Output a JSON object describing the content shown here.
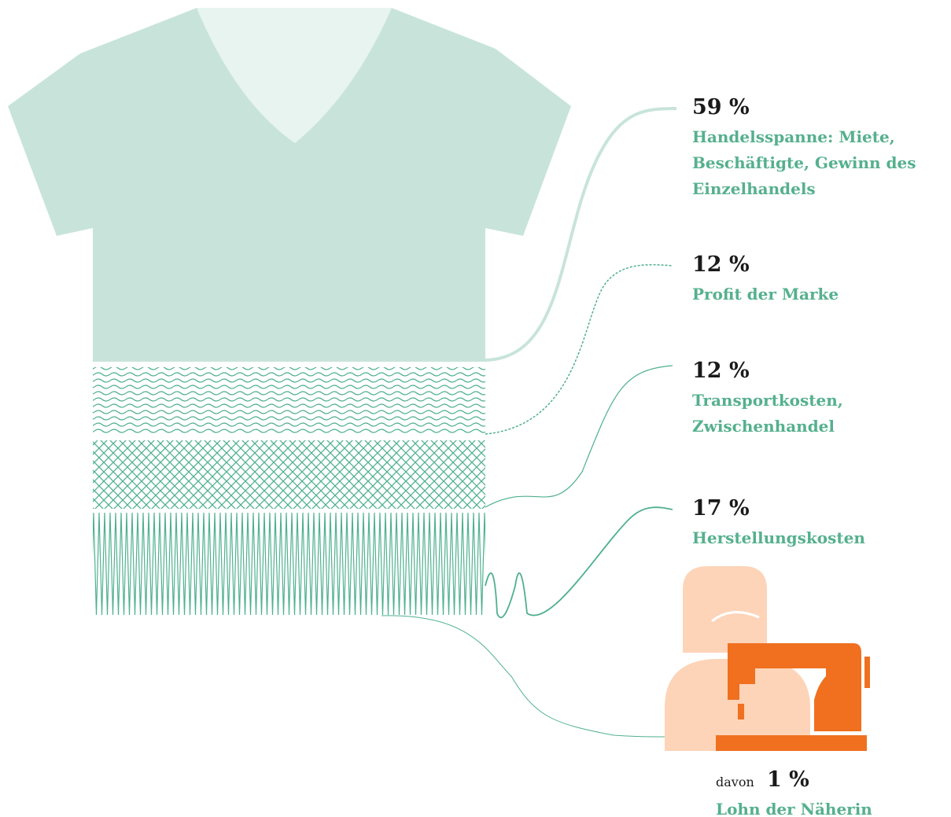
{
  "segments": [
    {
      "percent": "59 %",
      "lines": [
        "Handelsspanne: Miete,",
        "Beschäftigte, Gewinn des",
        "Einzelhandels"
      ]
    },
    {
      "percent": "12 %",
      "lines": [
        "Profit der Marke"
      ]
    },
    {
      "percent": "12 %",
      "lines": [
        "Transportkosten,",
        "Zwischenhandel"
      ]
    },
    {
      "percent": "17 %",
      "lines": [
        "Herstellungskosten"
      ]
    }
  ],
  "worker": {
    "prefix": "davon",
    "percent": "1 %",
    "label": "Lohn der Näherin"
  }
}
